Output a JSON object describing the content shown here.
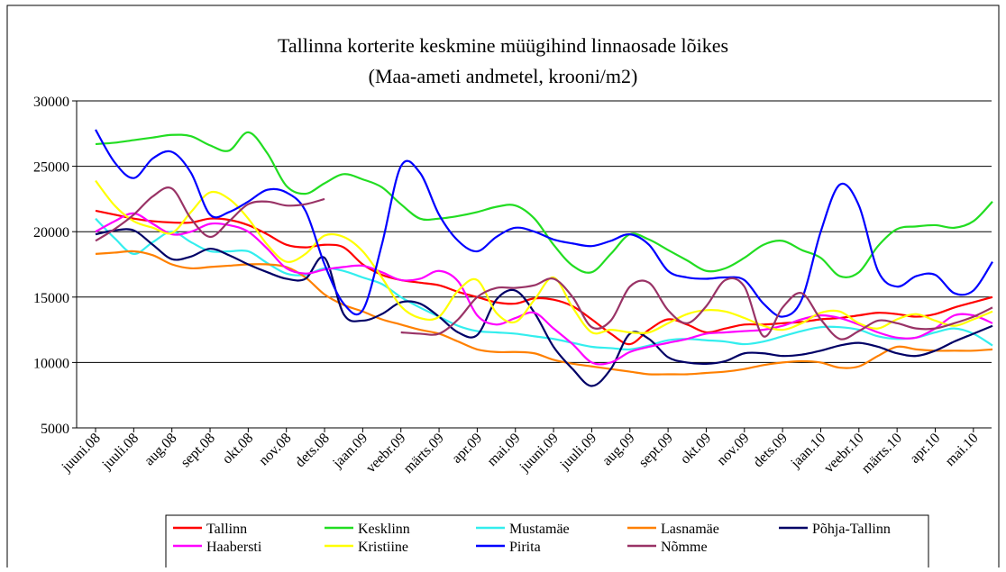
{
  "chart_data": {
    "type": "line",
    "title": "Tallinna korterite keskmine müügihind linnaosade lõikes",
    "subtitle": "(Maa-ameti andmetel, krooni/m2)",
    "categories": [
      "juuni.08",
      null,
      "juuli.08",
      null,
      "aug.08",
      null,
      "sept.08",
      null,
      "okt.08",
      null,
      "nov.08",
      null,
      "dets.08",
      null,
      "jaan.09",
      null,
      "veebr.09",
      null,
      "märts.09",
      null,
      "apr.09",
      null,
      "mai.09",
      null,
      "juuni.09",
      null,
      "juuli.09",
      null,
      "aug.09",
      null,
      "sept.09",
      null,
      "okt.09",
      null,
      "nov.09",
      null,
      "dets.09",
      null,
      "jaan.10",
      null,
      "veebr.10",
      null,
      "märts.10",
      null,
      "apr.10",
      null,
      "mai.10",
      null
    ],
    "ylim": [
      5000,
      30000
    ],
    "yticks": [
      5000,
      10000,
      15000,
      20000,
      25000,
      30000
    ],
    "grid": true,
    "series": [
      {
        "name": "Tallinn",
        "color": "#ff0000",
        "values": [
          21600,
          21300,
          21000,
          20800,
          20700,
          20700,
          21000,
          20900,
          20500,
          19800,
          19000,
          18800,
          19000,
          18800,
          17500,
          16700,
          16300,
          16100,
          15900,
          15400,
          15000,
          14600,
          14500,
          14900,
          14800,
          14300,
          13300,
          12200,
          11400,
          12500,
          13300,
          12900,
          12300,
          12600,
          12900,
          12900,
          13000,
          13100,
          13300,
          13400,
          13600,
          13800,
          13700,
          13500,
          13700,
          14200,
          14600,
          15000
        ]
      },
      {
        "name": "Kesklinn",
        "color": "#22dd22",
        "values": [
          26700,
          26800,
          27000,
          27200,
          27400,
          27300,
          26600,
          26200,
          27600,
          26000,
          23500,
          22900,
          23700,
          24400,
          24000,
          23400,
          22100,
          21000,
          21000,
          21200,
          21500,
          21900,
          22000,
          21000,
          19000,
          17400,
          16900,
          18300,
          19800,
          19400,
          18600,
          17800,
          17000,
          17200,
          18000,
          19000,
          19300,
          18600,
          18000,
          16600,
          16900,
          18900,
          20200,
          20400,
          20500,
          20300,
          20800,
          22300
        ]
      },
      {
        "name": "Mustamäe",
        "color": "#33eeee",
        "values": [
          21000,
          19500,
          18300,
          19200,
          20000,
          19200,
          18500,
          18500,
          18500,
          17600,
          16800,
          16700,
          17200,
          17000,
          16500,
          16000,
          15000,
          14200,
          13500,
          12800,
          12400,
          12300,
          12200,
          12000,
          11800,
          11500,
          11200,
          11100,
          11000,
          11300,
          11700,
          11800,
          11700,
          11600,
          11400,
          11600,
          12000,
          12400,
          12700,
          12700,
          12500,
          12000,
          11800,
          11900,
          12300,
          12600,
          12200,
          11300
        ]
      },
      {
        "name": "Lasnamäe",
        "color": "#ff8000",
        "values": [
          18300,
          18400,
          18500,
          18200,
          17500,
          17200,
          17300,
          17400,
          17500,
          17500,
          17300,
          16500,
          15200,
          14400,
          13900,
          13300,
          12900,
          12500,
          12200,
          11600,
          11000,
          10800,
          10800,
          10700,
          10200,
          9900,
          9700,
          9500,
          9300,
          9100,
          9100,
          9100,
          9200,
          9300,
          9500,
          9800,
          10000,
          10100,
          10000,
          9600,
          9700,
          10500,
          11200,
          11000,
          10900,
          10900,
          10900,
          11000
        ]
      },
      {
        "name": "Põhja-Tallinn",
        "color": "#000066",
        "values": [
          19800,
          20100,
          20100,
          19000,
          17900,
          18100,
          18700,
          18200,
          17500,
          16900,
          16400,
          16400,
          18000,
          13700,
          13200,
          13700,
          14600,
          14500,
          13500,
          12300,
          12100,
          14800,
          15500,
          13800,
          11200,
          9500,
          8200,
          9500,
          12200,
          11800,
          10400,
          10000,
          9900,
          10100,
          10700,
          10700,
          10500,
          10600,
          10900,
          11300,
          11500,
          11200,
          10700,
          10500,
          10900,
          11600,
          12200,
          12800
        ]
      },
      {
        "name": "Haabersti",
        "color": "#ff00ff",
        "values": [
          20000,
          20800,
          21400,
          20600,
          19800,
          20000,
          20600,
          20500,
          20000,
          18700,
          17200,
          16800,
          17100,
          17300,
          17400,
          16900,
          16300,
          16400,
          17000,
          16200,
          13600,
          12900,
          13400,
          13800,
          12600,
          11400,
          10000,
          10000,
          10800,
          11200,
          11500,
          11800,
          12200,
          12300,
          12400,
          12500,
          12800,
          13300,
          13600,
          13400,
          12900,
          12300,
          11900,
          11900,
          12600,
          13600,
          13600,
          13000
        ]
      },
      {
        "name": "Kristiine",
        "color": "#ffff00",
        "values": [
          23900,
          22000,
          20800,
          20300,
          19900,
          21500,
          23000,
          22500,
          21000,
          19000,
          17700,
          18300,
          19700,
          19600,
          18500,
          16500,
          14300,
          13400,
          13500,
          15500,
          16300,
          13800,
          13100,
          14800,
          16500,
          14200,
          12300,
          12500,
          12300,
          12300,
          13000,
          13700,
          14000,
          13900,
          13400,
          12800,
          12500,
          13000,
          13800,
          13900,
          13000,
          12600,
          13300,
          13700,
          13200,
          12800,
          13300,
          13900
        ]
      },
      {
        "name": "Pirita",
        "color": "#0000ff",
        "values": [
          27800,
          25300,
          24100,
          25600,
          26100,
          24500,
          21300,
          21500,
          22300,
          23200,
          23000,
          21600,
          17500,
          14500,
          14000,
          19000,
          25000,
          24500,
          21300,
          19300,
          18500,
          19600,
          20300,
          20000,
          19400,
          19100,
          18900,
          19300,
          19800,
          19000,
          17000,
          16500,
          16400,
          16500,
          16300,
          14500,
          13500,
          14800,
          20000,
          23600,
          22000,
          17000,
          15800,
          16600,
          16700,
          15300,
          15500,
          17700
        ]
      },
      {
        "name": "Nõmme",
        "color": "#993366",
        "values": [
          19300,
          20200,
          21300,
          22700,
          23300,
          21000,
          19600,
          20800,
          22100,
          22300,
          22000,
          22100,
          22500,
          null,
          null,
          null,
          12300,
          12200,
          12200,
          13300,
          15000,
          15700,
          15700,
          15900,
          16400,
          15000,
          12700,
          13200,
          15800,
          16100,
          14000,
          13000,
          14300,
          16300,
          15800,
          12000,
          14200,
          15300,
          13300,
          11800,
          12400,
          13200,
          13000,
          12600,
          12600,
          13000,
          13500,
          14200
        ]
      }
    ]
  }
}
